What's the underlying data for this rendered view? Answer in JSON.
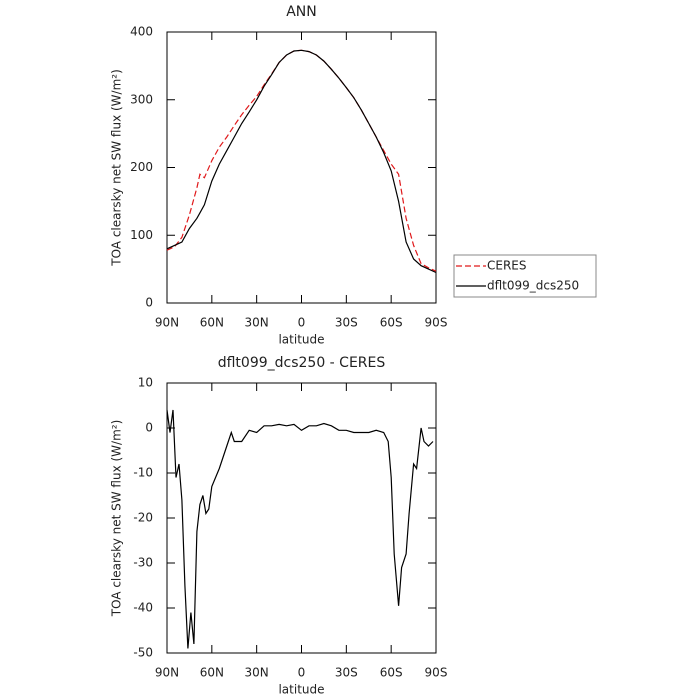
{
  "chart_data": [
    {
      "type": "line",
      "title": "ANN",
      "xlabel": "latitude",
      "ylabel": "TOA clearsky net SW flux (W/m²)",
      "xlim": [
        90,
        -90
      ],
      "ylim": [
        0,
        400
      ],
      "xticks": [
        {
          "value": 90,
          "label": "90N"
        },
        {
          "value": 60,
          "label": "60N"
        },
        {
          "value": 30,
          "label": "30N"
        },
        0,
        {
          "value": -30,
          "label": "30S"
        },
        {
          "value": -60,
          "label": "60S"
        },
        {
          "value": -90,
          "label": "90S"
        }
      ],
      "yticks": [
        0,
        100,
        200,
        300,
        400
      ],
      "legend": "right",
      "x": [
        90,
        85,
        80,
        75,
        70,
        68,
        65,
        60,
        55,
        50,
        45,
        40,
        35,
        30,
        25,
        20,
        15,
        10,
        5,
        0,
        -5,
        -10,
        -15,
        -20,
        -25,
        -30,
        -35,
        -40,
        -45,
        -50,
        -55,
        -60,
        -65,
        -70,
        -75,
        -80,
        -85,
        -90
      ],
      "series": [
        {
          "name": "CERES",
          "color": "#e0191b",
          "dash": "dashed",
          "values": [
            78,
            83,
            97,
            130,
            170,
            190,
            185,
            210,
            230,
            245,
            262,
            278,
            292,
            305,
            322,
            338,
            355,
            366,
            372,
            373,
            371,
            366,
            357,
            345,
            332,
            318,
            303,
            285,
            265,
            245,
            225,
            205,
            190,
            125,
            85,
            58,
            52,
            47
          ]
        },
        {
          "name": "dflt099_dcs250",
          "color": "#000000",
          "dash": "solid",
          "values": [
            80,
            85,
            90,
            110,
            125,
            133,
            145,
            180,
            205,
            225,
            245,
            265,
            282,
            300,
            320,
            337,
            355,
            366,
            372,
            373,
            371,
            366,
            357,
            345,
            332,
            318,
            303,
            285,
            265,
            245,
            222,
            195,
            150,
            90,
            65,
            55,
            50,
            45
          ]
        }
      ]
    },
    {
      "type": "line",
      "title": "dflt099_dcs250 - CERES",
      "xlabel": "latitude",
      "ylabel": "TOA clearsky net SW flux (W/m²)",
      "xlim": [
        90,
        -90
      ],
      "ylim": [
        -50,
        10
      ],
      "xticks": [
        {
          "value": 90,
          "label": "90N"
        },
        {
          "value": 60,
          "label": "60N"
        },
        {
          "value": 30,
          "label": "30N"
        },
        0,
        {
          "value": -30,
          "label": "30S"
        },
        {
          "value": -60,
          "label": "60S"
        },
        {
          "value": -90,
          "label": "90S"
        }
      ],
      "yticks": [
        -50,
        -40,
        -30,
        -20,
        -10,
        0,
        10
      ],
      "x": [
        90,
        88,
        86,
        84,
        82,
        80,
        78,
        76,
        74,
        72,
        70,
        68,
        66,
        64,
        62,
        60,
        55,
        50,
        47,
        45,
        40,
        35,
        30,
        25,
        20,
        15,
        10,
        5,
        0,
        -5,
        -10,
        -15,
        -20,
        -25,
        -30,
        -35,
        -40,
        -45,
        -50,
        -55,
        -58,
        -60,
        -62,
        -65,
        -67,
        -70,
        -72,
        -75,
        -77,
        -80,
        -82,
        -85,
        -88
      ],
      "series": [
        {
          "color": "#000000",
          "dash": "solid",
          "values": [
            4,
            -1,
            4,
            -11,
            -8,
            -16,
            -35,
            -49,
            -41,
            -48,
            -23,
            -17,
            -15,
            -19,
            -18,
            -13,
            -9,
            -4,
            -1,
            -3,
            -3,
            -0.5,
            -1,
            0.5,
            0.5,
            0.8,
            0.5,
            0.8,
            -0.5,
            0.5,
            0.5,
            1,
            0.5,
            -0.5,
            -0.5,
            -1,
            -1,
            -1,
            -0.5,
            -1,
            -3,
            -11,
            -28,
            -39.5,
            -31,
            -28,
            -19,
            -8,
            -9,
            0,
            -3,
            -4,
            -3
          ]
        }
      ]
    }
  ]
}
